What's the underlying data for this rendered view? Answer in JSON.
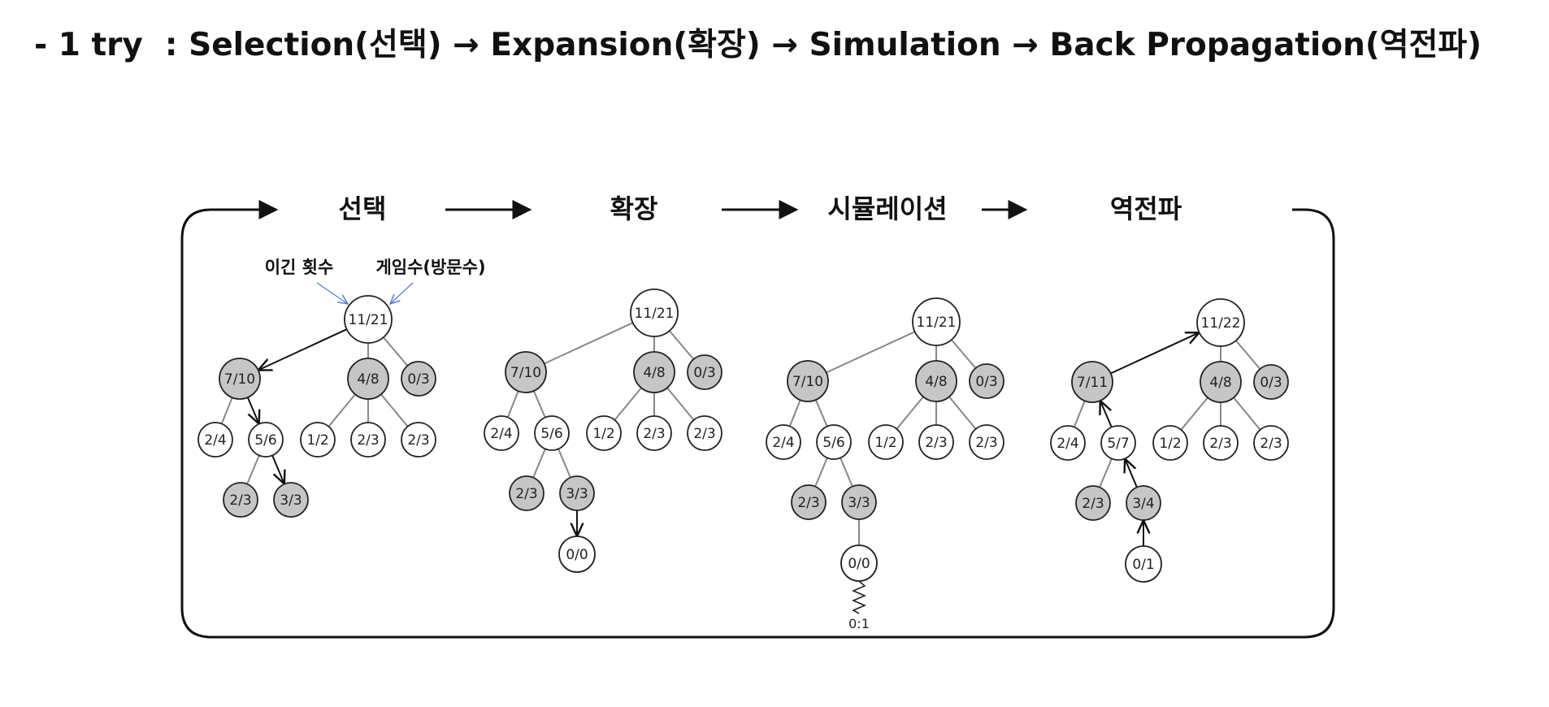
{
  "heading": "- 1 try  : Selection(선택) → Expansion(확장) → Simulation → Back Propagation(역전파)",
  "diagram": {
    "stages": [
      "선택",
      "확장",
      "시뮬레이션",
      "역전파"
    ],
    "annotations": {
      "wins": "이긴 횟수",
      "games": "게임수(방문수)"
    },
    "colors": {
      "shaded": "#c6c6c6",
      "plain": "#ffffff",
      "edge": "#888888",
      "arrow": "#111111",
      "annotation_arrow": "#5b7fc7"
    },
    "trees": [
      {
        "stage": "선택",
        "nodes": [
          {
            "id": "root",
            "label": "11/21",
            "shaded": false
          },
          {
            "id": "a",
            "label": "7/10",
            "shaded": true
          },
          {
            "id": "b",
            "label": "4/8",
            "shaded": true
          },
          {
            "id": "c",
            "label": "0/3",
            "shaded": true
          },
          {
            "id": "a1",
            "label": "2/4",
            "shaded": false
          },
          {
            "id": "a2",
            "label": "5/6",
            "shaded": false
          },
          {
            "id": "b1",
            "label": "1/2",
            "shaded": false
          },
          {
            "id": "b2",
            "label": "2/3",
            "shaded": false
          },
          {
            "id": "b3",
            "label": "2/3",
            "shaded": false
          },
          {
            "id": "a21",
            "label": "2/3",
            "shaded": true
          },
          {
            "id": "a22",
            "label": "3/3",
            "shaded": true
          }
        ],
        "path": [
          "root",
          "a",
          "a2",
          "a22"
        ]
      },
      {
        "stage": "확장",
        "nodes": [
          {
            "id": "root",
            "label": "11/21",
            "shaded": false
          },
          {
            "id": "a",
            "label": "7/10",
            "shaded": true
          },
          {
            "id": "b",
            "label": "4/8",
            "shaded": true
          },
          {
            "id": "c",
            "label": "0/3",
            "shaded": true
          },
          {
            "id": "a1",
            "label": "2/4",
            "shaded": false
          },
          {
            "id": "a2",
            "label": "5/6",
            "shaded": false
          },
          {
            "id": "b1",
            "label": "1/2",
            "shaded": false
          },
          {
            "id": "b2",
            "label": "2/3",
            "shaded": false
          },
          {
            "id": "b3",
            "label": "2/3",
            "shaded": false
          },
          {
            "id": "a21",
            "label": "2/3",
            "shaded": true
          },
          {
            "id": "a22",
            "label": "3/3",
            "shaded": true
          },
          {
            "id": "new",
            "label": "0/0",
            "shaded": false
          }
        ],
        "path": [
          "a22",
          "new"
        ]
      },
      {
        "stage": "시뮬레이션",
        "nodes": [
          {
            "id": "root",
            "label": "11/21",
            "shaded": false
          },
          {
            "id": "a",
            "label": "7/10",
            "shaded": true
          },
          {
            "id": "b",
            "label": "4/8",
            "shaded": true
          },
          {
            "id": "c",
            "label": "0/3",
            "shaded": true
          },
          {
            "id": "a1",
            "label": "2/4",
            "shaded": false
          },
          {
            "id": "a2",
            "label": "5/6",
            "shaded": false
          },
          {
            "id": "b1",
            "label": "1/2",
            "shaded": false
          },
          {
            "id": "b2",
            "label": "2/3",
            "shaded": false
          },
          {
            "id": "b3",
            "label": "2/3",
            "shaded": false
          },
          {
            "id": "a21",
            "label": "2/3",
            "shaded": true
          },
          {
            "id": "a22",
            "label": "3/3",
            "shaded": true
          },
          {
            "id": "new",
            "label": "0/0",
            "shaded": false
          }
        ],
        "result": "0:1"
      },
      {
        "stage": "역전파",
        "nodes": [
          {
            "id": "root",
            "label": "11/22",
            "shaded": false
          },
          {
            "id": "a",
            "label": "7/11",
            "shaded": true
          },
          {
            "id": "b",
            "label": "4/8",
            "shaded": true
          },
          {
            "id": "c",
            "label": "0/3",
            "shaded": true
          },
          {
            "id": "a1",
            "label": "2/4",
            "shaded": false
          },
          {
            "id": "a2",
            "label": "5/7",
            "shaded": false
          },
          {
            "id": "b1",
            "label": "1/2",
            "shaded": false
          },
          {
            "id": "b2",
            "label": "2/3",
            "shaded": false
          },
          {
            "id": "b3",
            "label": "2/3",
            "shaded": false
          },
          {
            "id": "a21",
            "label": "2/3",
            "shaded": true
          },
          {
            "id": "a22",
            "label": "3/4",
            "shaded": true
          },
          {
            "id": "new",
            "label": "0/1",
            "shaded": false
          }
        ],
        "path": [
          "new",
          "a22",
          "a2",
          "a",
          "root"
        ]
      }
    ]
  }
}
